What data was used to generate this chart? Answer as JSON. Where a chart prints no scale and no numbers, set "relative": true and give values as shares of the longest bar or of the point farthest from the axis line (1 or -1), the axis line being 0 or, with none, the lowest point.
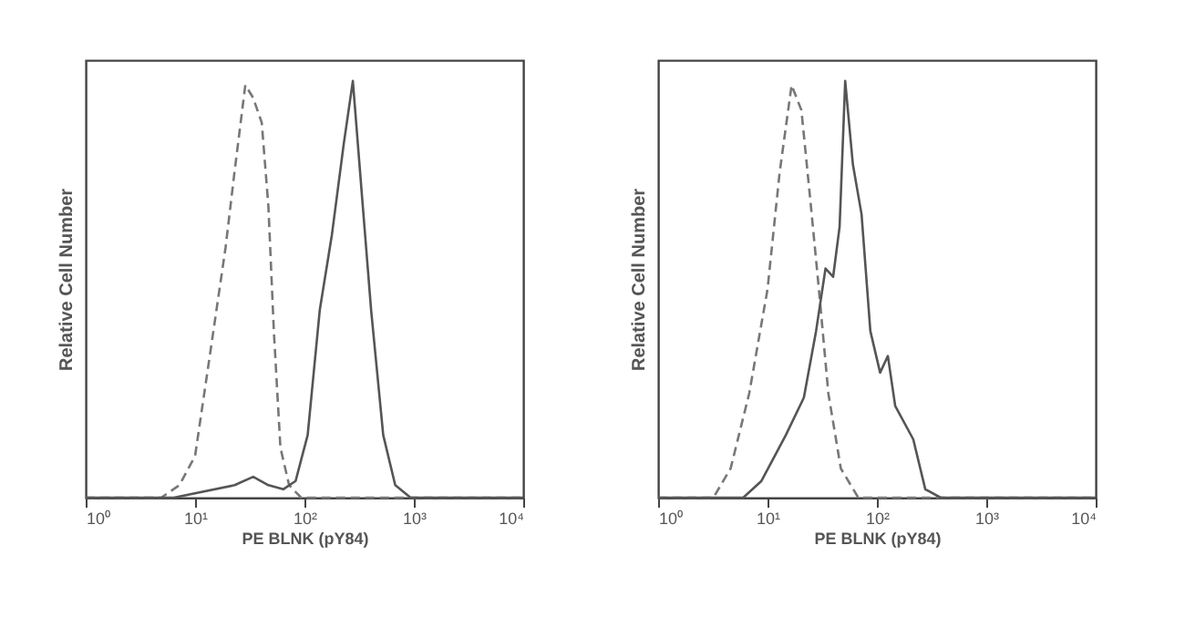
{
  "chart_data": [
    {
      "type": "line",
      "relative": true,
      "log": "x",
      "xlabel": "PE BLNK (pY84)",
      "ylabel": "Relative Cell Number",
      "xlim": [
        1,
        10000
      ],
      "xticks": [
        {
          "value": 1,
          "label": "10⁰"
        },
        {
          "value": 10,
          "label": "10¹"
        },
        {
          "value": 100,
          "label": "10²"
        },
        {
          "value": 1000,
          "label": "10³"
        },
        {
          "value": 10000,
          "label": "10⁴"
        }
      ],
      "grid": false,
      "series": [
        {
          "color": "#777777",
          "line_style": "dashed",
          "x": [
            1,
            4.9,
            7.2,
            10,
            13.8,
            19,
            22.9,
            28.8,
            33.9,
            40.7,
            46.8,
            52.5,
            60.3,
            72.4,
            93.3,
            10000
          ],
          "values": [
            0,
            0,
            0.03,
            0.1,
            0.35,
            0.6,
            0.78,
            0.99,
            0.96,
            0.9,
            0.7,
            0.4,
            0.12,
            0.03,
            0,
            0
          ]
        },
        {
          "color": "#555555",
          "line_style": "solid",
          "x": [
            1,
            6.4,
            23,
            34,
            46.8,
            64,
            83,
            107,
            138,
            178,
            229,
            277,
            339,
            407,
            525,
            676,
            933,
            10000
          ],
          "values": [
            0,
            0,
            0.03,
            0.05,
            0.03,
            0.02,
            0.04,
            0.15,
            0.45,
            0.63,
            0.85,
            1,
            0.71,
            0.45,
            0.15,
            0.03,
            0,
            0
          ]
        }
      ]
    },
    {
      "type": "line",
      "relative": true,
      "log": "x",
      "xlabel": "PE BLNK (pY84)",
      "ylabel": "Relative Cell Number",
      "xlim": [
        1,
        10000
      ],
      "xticks": [
        {
          "value": 1,
          "label": "10⁰"
        },
        {
          "value": 10,
          "label": "10¹"
        },
        {
          "value": 100,
          "label": "10²"
        },
        {
          "value": 1000,
          "label": "10³"
        },
        {
          "value": 10000,
          "label": "10⁴"
        }
      ],
      "grid": false,
      "series": [
        {
          "color": "#777777",
          "line_style": "dashed",
          "x": [
            1,
            3.2,
            4.6,
            6.8,
            10,
            12.9,
            16.6,
            20.4,
            24.5,
            29.5,
            36,
            46.8,
            67.6,
            10000
          ],
          "values": [
            0,
            0,
            0.07,
            0.25,
            0.5,
            0.78,
            0.99,
            0.93,
            0.72,
            0.5,
            0.25,
            0.07,
            0,
            0
          ]
        },
        {
          "color": "#555555",
          "line_style": "solid",
          "x": [
            1,
            6,
            8.8,
            14.7,
            21.5,
            27.8,
            33.9,
            39.8,
            45.6,
            51.3,
            60.3,
            72.4,
            87.1,
            107,
            126,
            147,
            215,
            277,
            383,
            10000
          ],
          "values": [
            0,
            0,
            0.04,
            0.15,
            0.24,
            0.4,
            0.55,
            0.53,
            0.65,
            1,
            0.8,
            0.68,
            0.4,
            0.3,
            0.34,
            0.22,
            0.14,
            0.02,
            0,
            0
          ]
        }
      ]
    }
  ]
}
